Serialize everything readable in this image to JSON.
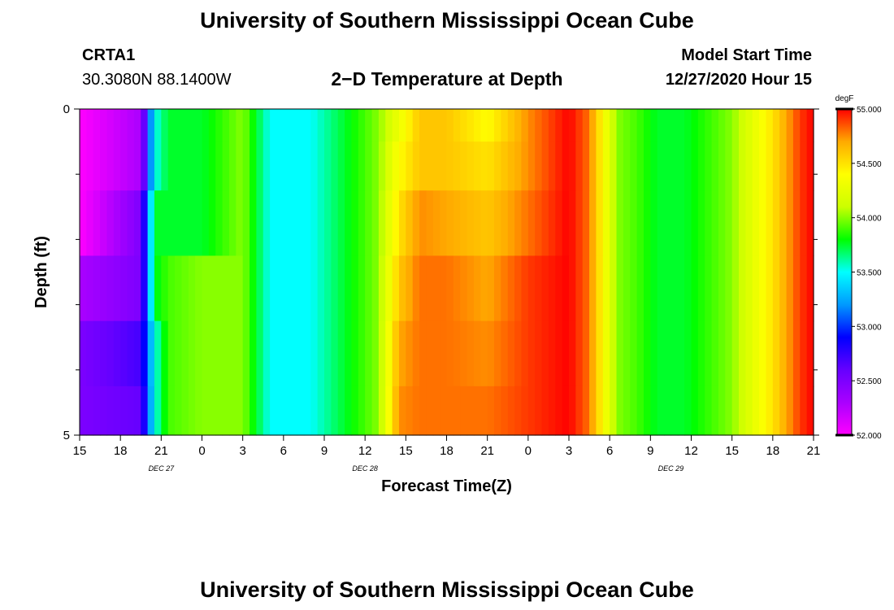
{
  "page": {
    "title": "University of Southern Mississippi Ocean Cube",
    "footer_title": "University of Southern Mississippi Ocean Cube",
    "station": "CRTA1",
    "coords": "30.3080N 88.1400W",
    "plot_title": "2−D Temperature at Depth",
    "model_start_label": "Model Start Time",
    "model_start_value": "12/27/2020 Hour 15"
  },
  "chart_data": {
    "type": "heatmap",
    "title": "2−D Temperature at Depth",
    "xlabel": "Forecast Time(Z)",
    "ylabel": "Depth (ft)",
    "x_tick_labels": [
      "15",
      "18",
      "21",
      "0",
      "3",
      "6",
      "9",
      "12",
      "15",
      "18",
      "21",
      "0",
      "3",
      "6",
      "9",
      "12",
      "15",
      "18",
      "21"
    ],
    "date_labels": [
      {
        "text": "DEC  27",
        "tick_index": 2
      },
      {
        "text": "DEC  28",
        "tick_index": 7
      },
      {
        "text": "DEC  29",
        "tick_index": 14.5
      }
    ],
    "x_range_hours": [
      0,
      54
    ],
    "y_tick_labels": [
      "0",
      "5"
    ],
    "ylim": [
      0,
      5
    ],
    "y_minor_ticks": [
      1,
      2,
      3,
      4
    ],
    "colorbar": {
      "unit": "degF",
      "min": 52.0,
      "max": 55.0,
      "tick_labels": [
        "55.000",
        "54.500",
        "54.000",
        "53.500",
        "53.000",
        "52.500",
        "52.000"
      ],
      "tick_values": [
        55.0,
        54.5,
        54.0,
        53.5,
        53.0,
        52.5,
        52.0
      ],
      "colormap_stops": [
        "#ff00ff",
        "#aa00ff",
        "#6600ff",
        "#0000ff",
        "#0099ff",
        "#00ffff",
        "#00ff00",
        "#ccff00",
        "#ffff00",
        "#ffaa00",
        "#ff0000"
      ]
    },
    "depth_layers_ft": [
      0.25,
      0.75,
      1.75,
      2.75,
      3.75,
      4.75
    ],
    "time_keypoints_hours": [
      0,
      4.5,
      5.5,
      6.5,
      9,
      12,
      14,
      17,
      22,
      23.5,
      25,
      27,
      30,
      33,
      36,
      37.5,
      39.5,
      41,
      42.5,
      44.5,
      48,
      51,
      53,
      54
    ],
    "values_degF": [
      [
        52.0,
        52.3,
        53.5,
        53.75,
        53.75,
        54.0,
        53.5,
        53.5,
        54.0,
        54.3,
        54.6,
        54.6,
        54.4,
        54.75,
        55.0,
        54.8,
        54.0,
        53.9,
        53.75,
        53.75,
        54.0,
        54.5,
        54.9,
        55.0
      ],
      [
        52.0,
        52.3,
        53.5,
        53.75,
        53.75,
        54.0,
        53.5,
        53.5,
        54.0,
        54.4,
        54.6,
        54.6,
        54.5,
        54.75,
        55.0,
        54.8,
        54.0,
        53.9,
        53.75,
        53.75,
        54.0,
        54.5,
        54.9,
        55.0
      ],
      [
        52.0,
        52.5,
        53.75,
        53.75,
        53.75,
        54.0,
        53.5,
        53.5,
        54.0,
        54.5,
        54.75,
        54.7,
        54.6,
        54.8,
        55.0,
        54.8,
        54.0,
        53.9,
        53.75,
        53.75,
        54.0,
        54.5,
        54.9,
        55.0
      ],
      [
        52.3,
        52.5,
        53.75,
        53.9,
        54.0,
        54.0,
        53.5,
        53.5,
        54.0,
        54.6,
        54.8,
        54.8,
        54.7,
        54.9,
        55.0,
        54.8,
        54.0,
        53.9,
        53.75,
        53.75,
        54.0,
        54.5,
        54.9,
        55.0
      ],
      [
        52.5,
        52.7,
        53.5,
        53.9,
        54.0,
        54.0,
        53.5,
        53.5,
        54.0,
        54.7,
        54.8,
        54.8,
        54.75,
        54.9,
        55.0,
        54.8,
        54.0,
        53.9,
        53.75,
        53.75,
        54.0,
        54.5,
        54.9,
        55.0
      ],
      [
        52.5,
        52.6,
        53.5,
        53.9,
        54.0,
        54.0,
        53.5,
        53.5,
        54.0,
        54.75,
        54.8,
        54.8,
        54.8,
        54.9,
        55.0,
        54.8,
        54.0,
        53.9,
        53.75,
        53.75,
        54.0,
        54.5,
        54.9,
        55.0
      ]
    ]
  }
}
